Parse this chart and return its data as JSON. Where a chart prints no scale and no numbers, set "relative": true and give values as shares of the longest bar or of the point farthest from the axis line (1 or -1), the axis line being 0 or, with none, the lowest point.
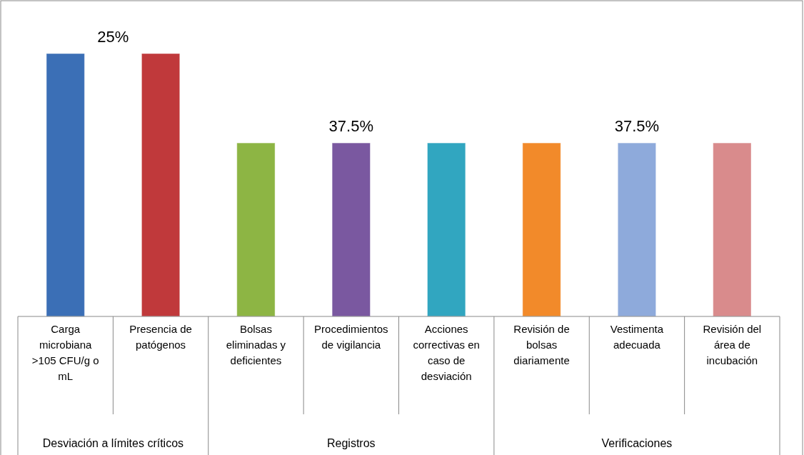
{
  "chart_data": {
    "type": "bar",
    "relative": true,
    "categories": [
      "Carga microbiana >105 CFU/g o mL",
      "Presencia de patógenos",
      "Bolsas eliminadas y deficientes",
      "Procedimientos de vigilancia",
      "Acciones correctivas en caso de desviación",
      "Revisión de bolsas diariamente",
      "Vestimenta adecuada",
      "Revisión del área de incubación"
    ],
    "values": [
      1,
      1,
      0.66,
      0.66,
      0.66,
      0.66,
      0.66,
      0.66
    ],
    "colors": [
      "#3b6fb6",
      "#c0393b",
      "#8db544",
      "#7a58a0",
      "#31a6c0",
      "#f28a2a",
      "#8eaadb",
      "#d98b8c"
    ],
    "annotations": [
      "25%",
      "37.5%",
      "37.5%",
      "Desviación a límites críticos",
      "Registros",
      "Verificaciones"
    ]
  }
}
